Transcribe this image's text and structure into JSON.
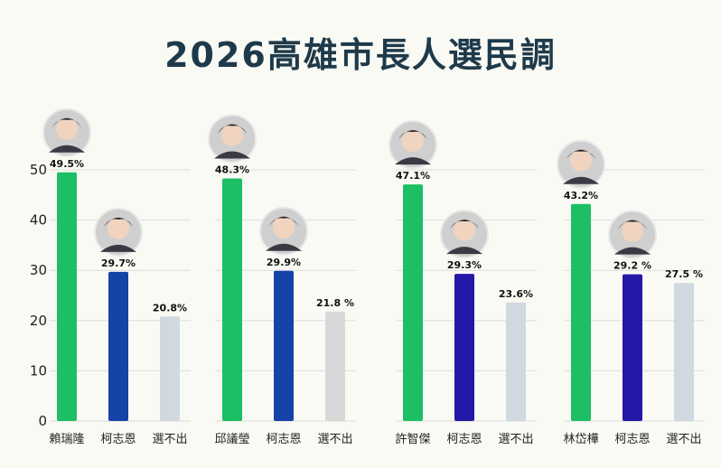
{
  "title": "2026高雄市長人選民調",
  "chart_data": {
    "type": "bar",
    "title": "2026高雄市長人選民調",
    "ylim": [
      0,
      50
    ],
    "yticks": [
      0,
      10,
      20,
      30,
      40,
      50
    ],
    "grid": true,
    "groups": [
      {
        "bars": [
          {
            "label": "賴瑞隆",
            "value": 49.5,
            "value_label": "49.5%",
            "color": "#1dbf64",
            "has_photo": true
          },
          {
            "label": "柯志恩",
            "value": 29.7,
            "value_label": "29.7%",
            "color": "#1543a8",
            "has_photo": true
          },
          {
            "label": "選不出",
            "value": 20.8,
            "value_label": "20.8%",
            "color": "#d0d8e0",
            "has_photo": false
          }
        ]
      },
      {
        "bars": [
          {
            "label": "邱議瑩",
            "value": 48.3,
            "value_label": "48.3%",
            "color": "#1dbf64",
            "has_photo": true
          },
          {
            "label": "柯志恩",
            "value": 29.9,
            "value_label": "29.9%",
            "color": "#1543a8",
            "has_photo": true
          },
          {
            "label": "選不出",
            "value": 21.8,
            "value_label": "21.8 %",
            "color": "#d8d8d8",
            "has_photo": false
          }
        ]
      },
      {
        "bars": [
          {
            "label": "許智傑",
            "value": 47.1,
            "value_label": "47.1%",
            "color": "#1dbf64",
            "has_photo": true
          },
          {
            "label": "柯志恩",
            "value": 29.3,
            "value_label": "29.3%",
            "color": "#2418a8",
            "has_photo": true
          },
          {
            "label": "選不出",
            "value": 23.6,
            "value_label": "23.6%",
            "color": "#d0d8e0",
            "has_photo": false
          }
        ]
      },
      {
        "bars": [
          {
            "label": "林岱樺",
            "value": 43.2,
            "value_label": "43.2%",
            "color": "#1dbf64",
            "has_photo": true
          },
          {
            "label": "柯志恩",
            "value": 29.2,
            "value_label": "29.2 %",
            "color": "#2418a8",
            "has_photo": true
          },
          {
            "label": "選不出",
            "value": 27.5,
            "value_label": "27.5 %",
            "color": "#d0d8e0",
            "has_photo": false
          }
        ]
      }
    ]
  }
}
